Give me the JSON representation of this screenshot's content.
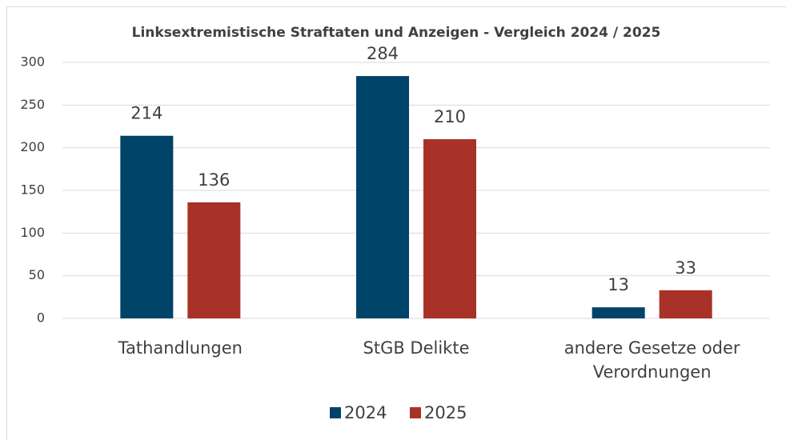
{
  "chart_data": {
    "type": "bar",
    "title": "Linksextremistische Straftaten und Anzeigen - Vergleich 2024 / 2025",
    "categories": [
      "Tathandlungen",
      "StGB Delikte",
      "andere Gesetze oder Verordnungen"
    ],
    "series": [
      {
        "name": "2024",
        "color": "#004369",
        "values": [
          214,
          284,
          13
        ]
      },
      {
        "name": "2025",
        "color": "#a83227",
        "values": [
          136,
          210,
          33
        ]
      }
    ],
    "ylim": [
      0,
      300
    ],
    "yticks": [
      0,
      50,
      100,
      150,
      200,
      250,
      300
    ],
    "grid": true,
    "legend": "bottom"
  }
}
